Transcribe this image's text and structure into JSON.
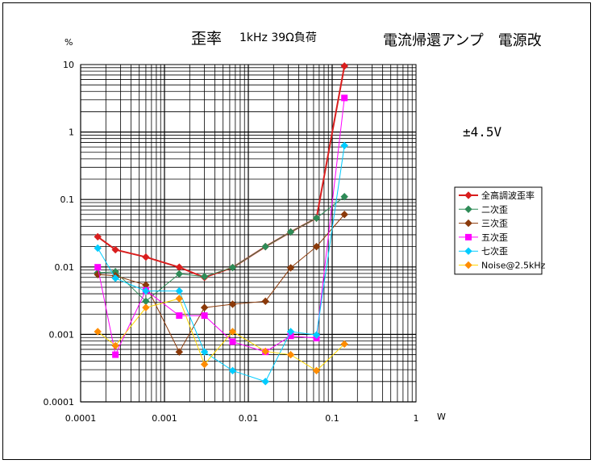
{
  "chart_data": {
    "type": "line",
    "title": "歪率",
    "subtitle": "1kHz 39Ω負荷",
    "right_title": "電流帰還アンプ　電源改",
    "annotation": "±4.5V",
    "ylabel": "%",
    "xlabel": "W",
    "x_scale": "log",
    "y_scale": "log",
    "xlim": [
      0.0001,
      1
    ],
    "ylim": [
      0.0001,
      10
    ],
    "x_ticks": [
      0.0001,
      0.001,
      0.01,
      0.1,
      1
    ],
    "x_tick_labels": [
      "0.0001",
      "0.001",
      "0.01",
      "0.1",
      "1"
    ],
    "y_ticks": [
      0.0001,
      0.001,
      0.01,
      0.1,
      1,
      10
    ],
    "y_tick_labels": [
      "0.0001",
      "0.001",
      "0.01",
      "0.1",
      "1",
      "10"
    ],
    "grid": true,
    "legend_position": "right",
    "series": [
      {
        "name": "全高調波歪率",
        "color": "#d91e1e",
        "marker": "diamond",
        "points": [
          [
            0.00016,
            0.028
          ],
          [
            0.00026,
            0.018
          ],
          [
            0.0006,
            0.014
          ],
          [
            0.0015,
            0.0099
          ],
          [
            0.003,
            0.007
          ],
          [
            0.0065,
            0.0098
          ],
          [
            0.016,
            0.02
          ],
          [
            0.032,
            0.033
          ],
          [
            0.065,
            0.053
          ],
          [
            0.14,
            9.5
          ]
        ]
      },
      {
        "name": "二次歪",
        "color": "#2e8b57",
        "marker": "diamond",
        "points": [
          [
            0.00016,
            0.0082
          ],
          [
            0.00026,
            0.0085
          ],
          [
            0.0006,
            0.0031
          ],
          [
            0.0015,
            0.0079
          ],
          [
            0.003,
            0.0072
          ],
          [
            0.0065,
            0.0098
          ],
          [
            0.016,
            0.02
          ],
          [
            0.032,
            0.033
          ],
          [
            0.065,
            0.053
          ],
          [
            0.14,
            0.11
          ]
        ]
      },
      {
        "name": "三次歪",
        "color": "#8b3a0a",
        "marker": "diamond",
        "points": [
          [
            0.00016,
            0.0077
          ],
          [
            0.00026,
            0.0074
          ],
          [
            0.0006,
            0.0054
          ],
          [
            0.0015,
            0.00055
          ],
          [
            0.003,
            0.0025
          ],
          [
            0.0065,
            0.0028
          ],
          [
            0.016,
            0.0031
          ],
          [
            0.032,
            0.0097
          ],
          [
            0.065,
            0.02
          ],
          [
            0.14,
            0.06
          ]
        ]
      },
      {
        "name": "五次歪",
        "color": "#ff00ff",
        "marker": "square",
        "points": [
          [
            0.00016,
            0.0099
          ],
          [
            0.00026,
            0.0005
          ],
          [
            0.0006,
            0.0045
          ],
          [
            0.0015,
            0.0019
          ],
          [
            0.003,
            0.0019
          ],
          [
            0.0065,
            0.00078
          ],
          [
            0.016,
            0.00055
          ],
          [
            0.032,
            0.00095
          ],
          [
            0.065,
            0.00088
          ],
          [
            0.14,
            3.2
          ]
        ]
      },
      {
        "name": "七次歪",
        "color": "#00ccff",
        "marker": "diamond",
        "points": [
          [
            0.00016,
            0.019
          ],
          [
            0.00026,
            0.0068
          ],
          [
            0.0006,
            0.0044
          ],
          [
            0.0015,
            0.0044
          ],
          [
            0.003,
            0.00055
          ],
          [
            0.0065,
            0.00029
          ],
          [
            0.016,
            0.0002
          ],
          [
            0.032,
            0.0011
          ],
          [
            0.065,
            0.00098
          ],
          [
            0.14,
            0.63
          ]
        ]
      },
      {
        "name": "Noise@2.5kHz",
        "color": "#ff8c00",
        "line_color": "#ffd700",
        "marker": "diamond",
        "points": [
          [
            0.00016,
            0.0011
          ],
          [
            0.00026,
            0.00068
          ],
          [
            0.0006,
            0.0025
          ],
          [
            0.0015,
            0.0034
          ],
          [
            0.003,
            0.00036
          ],
          [
            0.0065,
            0.0011
          ],
          [
            0.016,
            0.00056
          ],
          [
            0.032,
            0.0005
          ],
          [
            0.065,
            0.00029
          ],
          [
            0.14,
            0.00072
          ]
        ]
      }
    ]
  }
}
